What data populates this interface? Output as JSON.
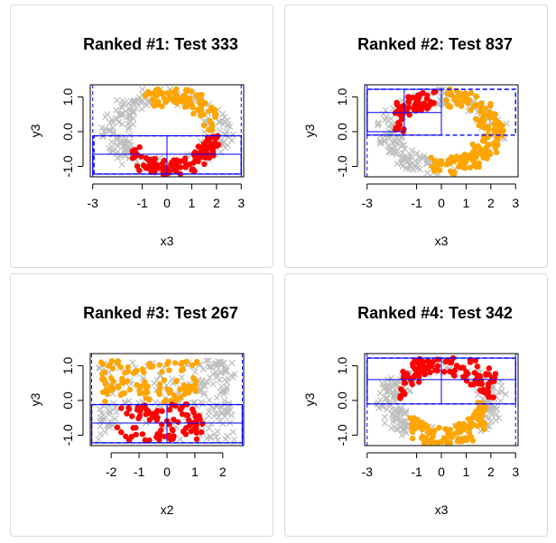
{
  "colors": {
    "gray": "#bebebe",
    "orange": "#ffa500",
    "red": "#ff0000",
    "blue": "#0000ff"
  },
  "chart_data": [
    {
      "type": "scatter",
      "title": "Ranked #1: Test 333",
      "xlabel": "x3",
      "ylabel": "y3",
      "xlim": [
        -3.1,
        3.1
      ],
      "ylim": [
        -1.3,
        1.35
      ],
      "xticks": [
        -3,
        -1,
        0,
        1,
        2,
        3
      ],
      "yticks": [
        -1.0,
        0.0,
        1.0
      ],
      "ytick_labels": [
        "-1.0",
        "0.0",
        "1.0"
      ],
      "series": [
        {
          "name": "gray points",
          "marker": "x"
        },
        {
          "name": "orange points",
          "marker": "dot"
        },
        {
          "name": "red points",
          "marker": "dot"
        }
      ],
      "boxes": [
        {
          "style": "solid",
          "x": [
            -3.0,
            3.0
          ],
          "y": [
            -1.22,
            -0.12
          ]
        },
        {
          "style": "solid",
          "x": [
            -3.0,
            3.0
          ],
          "y": [
            -1.22,
            -0.65
          ]
        },
        {
          "style": "dashed",
          "x": [
            -2.95,
            3.0
          ],
          "y": [
            -1.22,
            -0.12
          ]
        }
      ],
      "dashed_vlines": [
        -3.0,
        3.0
      ],
      "vlines": [
        0.0
      ]
    },
    {
      "type": "scatter",
      "title": "Ranked #2: Test 837",
      "xlabel": "x3",
      "ylabel": "y3",
      "xlim": [
        -3.1,
        3.1
      ],
      "ylim": [
        -1.3,
        1.35
      ],
      "xticks": [
        -3,
        -1,
        0,
        1,
        2,
        3
      ],
      "yticks": [
        -1.0,
        0.0,
        1.0
      ],
      "ytick_labels": [
        "-1.0",
        "0.0",
        "1.0"
      ],
      "series": [
        {
          "name": "gray points",
          "marker": "x"
        },
        {
          "name": "orange points",
          "marker": "dot"
        },
        {
          "name": "red points",
          "marker": "dot"
        }
      ],
      "boxes": [
        {
          "style": "solid",
          "x": [
            -3.0,
            0.0
          ],
          "y": [
            -0.1,
            1.22
          ]
        },
        {
          "style": "solid",
          "x": [
            -3.0,
            -1.5
          ],
          "y": [
            0.0,
            1.22
          ]
        },
        {
          "style": "solid",
          "x": [
            -3.0,
            0.0
          ],
          "y": [
            0.55,
            0.55
          ]
        },
        {
          "style": "dashed",
          "x": [
            -3.0,
            3.0
          ],
          "y": [
            -0.1,
            1.22
          ]
        }
      ],
      "dashed_vlines": [
        -3.0
      ],
      "vlines": []
    },
    {
      "type": "scatter",
      "title": "Ranked #3: Test 267",
      "xlabel": "x2",
      "ylabel": "y3",
      "xlim": [
        -2.75,
        2.75
      ],
      "ylim": [
        -1.3,
        1.35
      ],
      "xticks": [
        -2,
        -1,
        0,
        1,
        2
      ],
      "yticks": [
        -1.0,
        0.0,
        1.0
      ],
      "ytick_labels": [
        "-1.0",
        "0.0",
        "1.0"
      ],
      "series": [
        {
          "name": "gray points",
          "marker": "x"
        },
        {
          "name": "orange points",
          "marker": "dot"
        },
        {
          "name": "red points",
          "marker": "dot"
        }
      ],
      "boxes": [
        {
          "style": "solid",
          "x": [
            -2.7,
            2.7
          ],
          "y": [
            -1.22,
            -0.12
          ]
        },
        {
          "style": "solid",
          "x": [
            -2.7,
            2.7
          ],
          "y": [
            -1.22,
            -0.65
          ]
        },
        {
          "style": "dashed",
          "x": [
            -2.7,
            2.7
          ],
          "y": [
            -1.22,
            -0.12
          ]
        }
      ],
      "dashed_vlines": [
        -2.7,
        2.7
      ],
      "vlines": [
        0.0
      ]
    },
    {
      "type": "scatter",
      "title": "Ranked #4: Test 342",
      "xlabel": "x3",
      "ylabel": "y3",
      "xlim": [
        -3.1,
        3.1
      ],
      "ylim": [
        -1.3,
        1.35
      ],
      "xticks": [
        -3,
        -1,
        0,
        1,
        2,
        3
      ],
      "yticks": [
        -1.0,
        0.0,
        1.0
      ],
      "ytick_labels": [
        "-1.0",
        "0.0",
        "1.0"
      ],
      "series": [
        {
          "name": "gray points",
          "marker": "x"
        },
        {
          "name": "orange points",
          "marker": "dot"
        },
        {
          "name": "red points",
          "marker": "dot"
        }
      ],
      "boxes": [
        {
          "style": "solid",
          "x": [
            -3.0,
            3.0
          ],
          "y": [
            -0.1,
            1.22
          ]
        },
        {
          "style": "solid",
          "x": [
            -3.0,
            3.0
          ],
          "y": [
            0.6,
            1.22
          ]
        },
        {
          "style": "dashed",
          "x": [
            -3.0,
            3.0
          ],
          "y": [
            -0.1,
            1.22
          ]
        }
      ],
      "dashed_vlines": [
        -3.0,
        3.0
      ],
      "vlines": [
        0.0
      ]
    }
  ]
}
